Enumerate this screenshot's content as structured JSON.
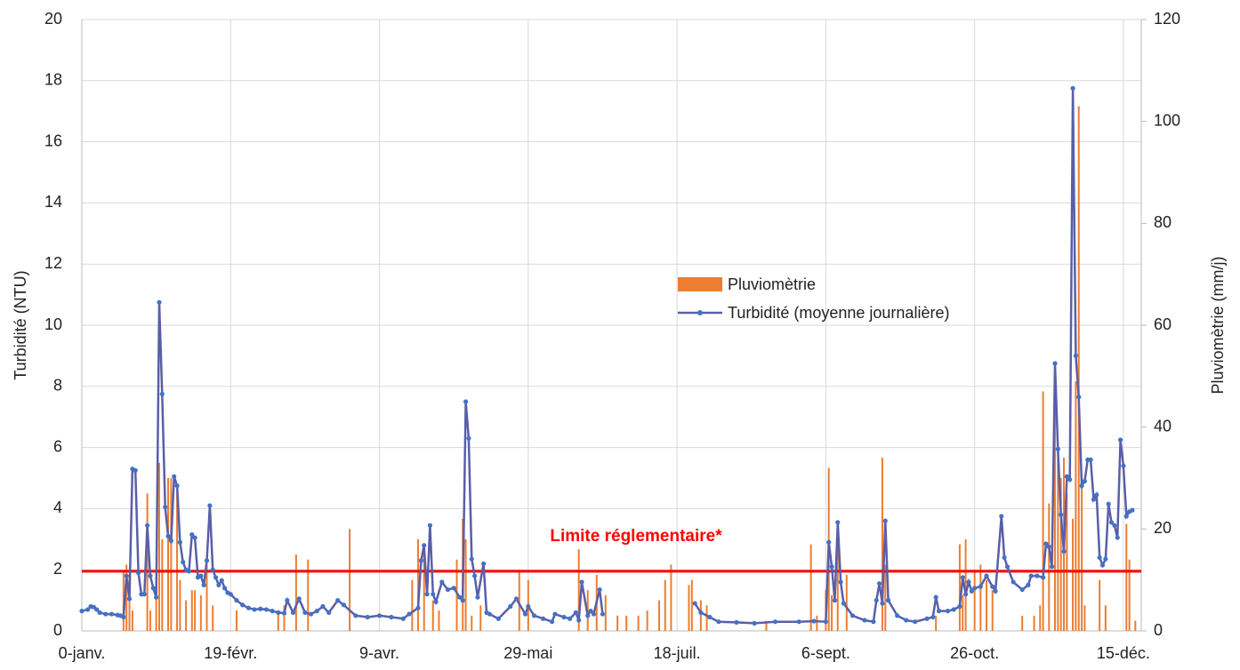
{
  "chart_data": {
    "type": "combo",
    "ylabel": "Turbidité (NTU)",
    "y2label": "Pluviomètrie (mm/j)",
    "xlim": [
      0,
      356
    ],
    "xticks": [
      {
        "value": 0,
        "label": "0-janv."
      },
      {
        "value": 50,
        "label": "19-févr."
      },
      {
        "value": 100,
        "label": "9-avr."
      },
      {
        "value": 150,
        "label": "29-mai"
      },
      {
        "value": 200,
        "label": "18-juil."
      },
      {
        "value": 250,
        "label": "6-sept."
      },
      {
        "value": 300,
        "label": "26-oct."
      },
      {
        "value": 350,
        "label": "15-déc."
      }
    ],
    "ylim": [
      0,
      20
    ],
    "yticks": [
      0,
      2,
      4,
      6,
      8,
      10,
      12,
      14,
      16,
      18,
      20
    ],
    "y2lim": [
      0,
      120
    ],
    "y2ticks": [
      0,
      20,
      40,
      60,
      80,
      100,
      120
    ],
    "grid": true,
    "threshold": {
      "value": 1.95,
      "label": "Limite réglementaire*",
      "color": "#ff0000"
    },
    "series": [
      {
        "name": "Pluviomètrie",
        "type": "bar",
        "axis": "y2",
        "color": "#ed7d31",
        "x": [
          14,
          15,
          16,
          17,
          22,
          23,
          25,
          26,
          27,
          29,
          30,
          32,
          33,
          35,
          37,
          38,
          40,
          42,
          44,
          52,
          66,
          68,
          72,
          76,
          90,
          111,
          113,
          115,
          118,
          120,
          126,
          128,
          129,
          131,
          134,
          147,
          150,
          167,
          170,
          173,
          176,
          180,
          183,
          187,
          190,
          194,
          196,
          198,
          204,
          205,
          208,
          210,
          230,
          245,
          247,
          250,
          251,
          252,
          254,
          257,
          269,
          270,
          287,
          295,
          296,
          297,
          300,
          302,
          304,
          306,
          316,
          320,
          322,
          323,
          325,
          327,
          328,
          329,
          330,
          331,
          333,
          334,
          335,
          336,
          337,
          342,
          344,
          351,
          352,
          354
        ],
        "values": [
          12,
          13,
          11,
          4,
          27,
          4,
          10,
          33,
          18,
          30,
          30,
          28,
          10,
          6,
          8,
          8,
          7,
          13,
          5,
          4,
          4,
          5,
          15,
          14,
          20,
          10,
          18,
          17,
          6,
          4,
          14,
          22,
          18,
          3,
          5,
          12,
          10,
          16,
          8,
          11,
          7,
          3,
          3,
          3,
          4,
          6,
          10,
          13,
          9,
          10,
          6,
          5,
          2,
          17,
          3,
          8,
          32,
          7,
          18,
          11,
          34,
          13,
          3,
          17,
          7,
          18,
          12,
          13,
          10,
          8,
          3,
          3,
          5,
          47,
          25,
          45,
          37,
          30,
          34,
          27,
          22,
          49,
          103,
          30,
          5,
          10,
          5,
          21,
          14,
          2
        ]
      },
      {
        "name": "Turbidité (moyenne journalière)",
        "type": "line",
        "color": "#5a5ea8",
        "marker_color": "#4472c4",
        "x": [
          0,
          2,
          3,
          4,
          5,
          6,
          8,
          10,
          12,
          13,
          14,
          15,
          16,
          17,
          18,
          19,
          20,
          21,
          22,
          23,
          24,
          25,
          26,
          27,
          28,
          29,
          30,
          31,
          32,
          33,
          34,
          35,
          36,
          37,
          38,
          39,
          40,
          41,
          42,
          43,
          44,
          45,
          46,
          47,
          48,
          49,
          50,
          52,
          54,
          56,
          58,
          60,
          62,
          64,
          66,
          68,
          69,
          71,
          73,
          75,
          77,
          79,
          81,
          83,
          86,
          88,
          92,
          96,
          100,
          104,
          108,
          110,
          113,
          114,
          115,
          116,
          117,
          118,
          119,
          121,
          123,
          125,
          127,
          128,
          129,
          130,
          131,
          132,
          133,
          135,
          136,
          137,
          140,
          144,
          146,
          149,
          150,
          152,
          155,
          158,
          159,
          162,
          164,
          166,
          167,
          168,
          170,
          171,
          172,
          174,
          175,
          190,
          206,
          208,
          211,
          214,
          220,
          226,
          233,
          241,
          246,
          250,
          251,
          252,
          253,
          254,
          255,
          256,
          259,
          263,
          266,
          267,
          268,
          269,
          270,
          271,
          274,
          277,
          280,
          284,
          286,
          287,
          288,
          291,
          293,
          295,
          296,
          297,
          298,
          299,
          300,
          302,
          304,
          306,
          307,
          309,
          310,
          311,
          313,
          316,
          318,
          319,
          321,
          323,
          324,
          325,
          326,
          327,
          328,
          329,
          330,
          331,
          332,
          333,
          334,
          335,
          336,
          337,
          338,
          339,
          340,
          341,
          342,
          343,
          344,
          345,
          346,
          347,
          348,
          349,
          350,
          351,
          352,
          353
        ],
        "values": [
          0.65,
          0.7,
          0.8,
          0.78,
          0.7,
          0.6,
          0.55,
          0.55,
          0.52,
          0.5,
          0.45,
          1.8,
          1.05,
          5.3,
          5.25,
          1.9,
          1.2,
          1.2,
          3.45,
          1.8,
          1.4,
          1.1,
          10.75,
          7.75,
          4.05,
          3.1,
          2.95,
          5.05,
          4.75,
          2.9,
          2.25,
          2.0,
          1.95,
          3.15,
          3.05,
          1.75,
          1.8,
          1.5,
          2.3,
          4.1,
          2.0,
          1.75,
          1.5,
          1.65,
          1.4,
          1.25,
          1.2,
          1.0,
          0.85,
          0.75,
          0.7,
          0.72,
          0.7,
          0.65,
          0.6,
          0.58,
          1.0,
          0.6,
          1.05,
          0.6,
          0.55,
          0.65,
          0.8,
          0.6,
          1.0,
          0.85,
          0.5,
          0.45,
          0.5,
          0.45,
          0.4,
          0.55,
          0.75,
          2.3,
          2.8,
          1.2,
          3.45,
          1.2,
          0.95,
          1.6,
          1.35,
          1.4,
          1.1,
          1.0,
          7.5,
          6.3,
          2.35,
          1.8,
          1.1,
          2.2,
          0.6,
          0.55,
          0.4,
          0.8,
          1.05,
          0.55,
          0.8,
          0.5,
          0.4,
          0.3,
          0.55,
          0.45,
          0.4,
          0.6,
          0.35,
          1.6,
          0.5,
          0.65,
          0.55,
          1.35,
          0.55,
          null,
          0.9,
          0.6,
          0.45,
          0.3,
          0.28,
          0.25,
          0.3,
          0.3,
          0.32,
          0.3,
          2.9,
          2.1,
          1.0,
          3.55,
          1.6,
          0.9,
          0.5,
          0.35,
          0.3,
          1.0,
          1.55,
          0.9,
          3.6,
          1.0,
          0.5,
          0.35,
          0.3,
          0.4,
          0.45,
          1.1,
          0.65,
          0.65,
          0.7,
          0.8,
          1.75,
          1.2,
          1.6,
          1.3,
          1.4,
          1.45,
          1.8,
          1.45,
          1.3,
          3.75,
          2.4,
          2.1,
          1.6,
          1.35,
          1.5,
          1.8,
          1.8,
          1.75,
          2.85,
          2.75,
          2.1,
          8.75,
          5.95,
          3.8,
          2.6,
          5.05,
          4.95,
          17.75,
          9.0,
          7.65,
          4.75,
          4.9,
          5.6,
          5.6,
          4.3,
          4.45,
          2.4,
          2.15,
          2.35,
          4.15,
          3.55,
          3.45,
          3.05,
          6.25,
          5.4,
          3.75,
          3.9,
          3.95
        ]
      }
    ]
  }
}
